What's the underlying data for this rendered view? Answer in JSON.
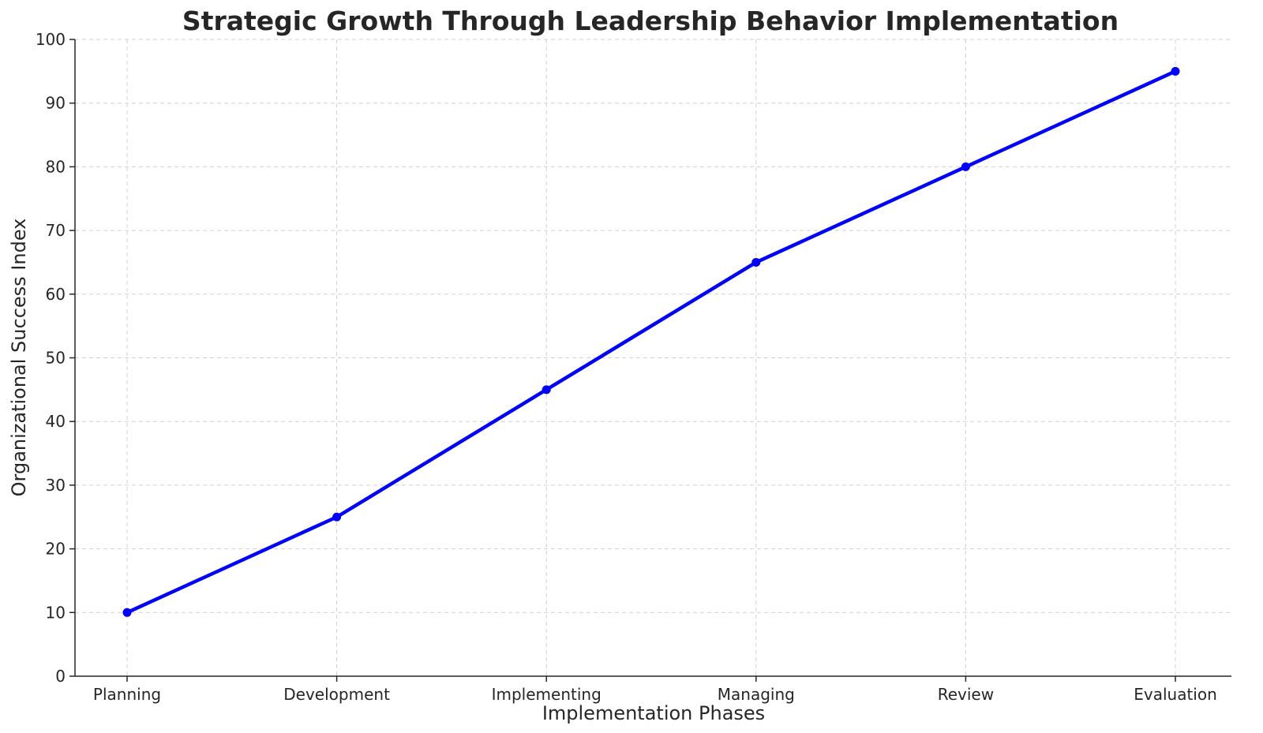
{
  "chart_data": {
    "type": "line",
    "title": "Strategic Growth Through Leadership Behavior Implementation",
    "xlabel": "Implementation Phases",
    "ylabel": "Organizational Success Index",
    "categories": [
      "Planning",
      "Development",
      "Implementing",
      "Managing",
      "Review",
      "Evaluation"
    ],
    "values": [
      10,
      25,
      45,
      65,
      80,
      95
    ],
    "ylim": [
      0,
      100
    ],
    "yticks": [
      0,
      10,
      20,
      30,
      40,
      50,
      60,
      70,
      80,
      90,
      100
    ],
    "grid": true,
    "line_color": "#0000ff",
    "marker": "circle"
  }
}
